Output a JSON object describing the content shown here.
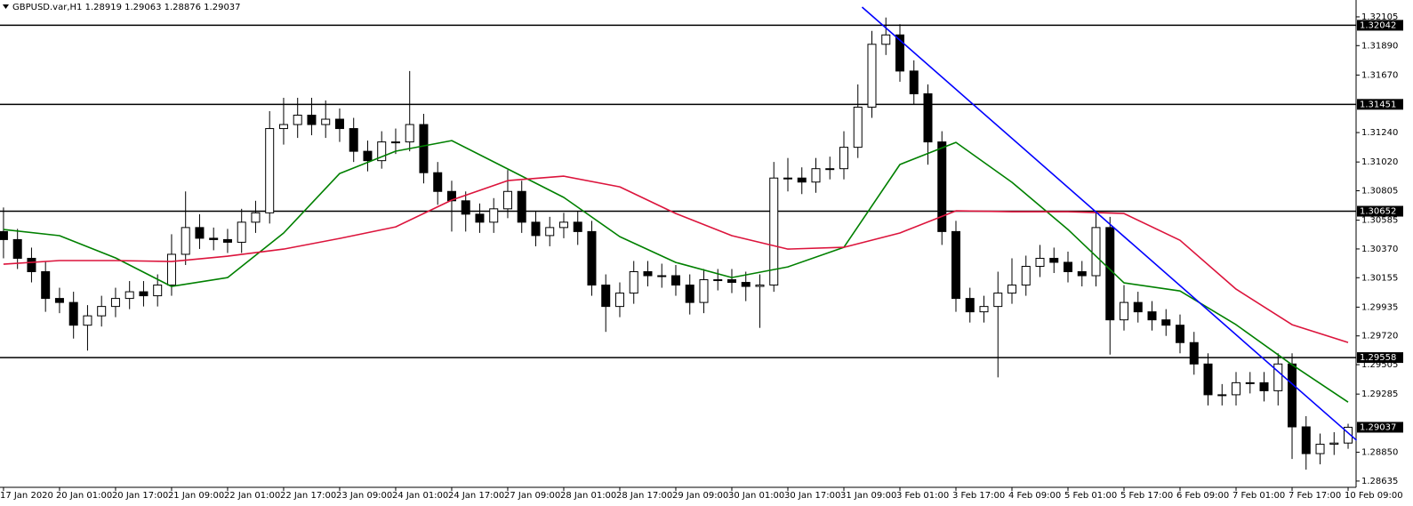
{
  "chart_data": {
    "type": "candlestick",
    "title": "GBPUSD.var,H1  1.28919 1.29063 1.28876 1.29037",
    "categories": [
      "17 Jan 2020",
      null,
      null,
      null,
      "20 Jan 01:00",
      null,
      null,
      null,
      "20 Jan 17:00",
      null,
      null,
      null,
      "21 Jan 09:00",
      null,
      null,
      null,
      "22 Jan 01:00",
      null,
      null,
      null,
      "22 Jan 17:00",
      null,
      null,
      null,
      "23 Jan 09:00",
      null,
      null,
      null,
      "24 Jan 01:00",
      null,
      null,
      null,
      "24 Jan 17:00",
      null,
      null,
      null,
      "27 Jan 09:00",
      null,
      null,
      null,
      "28 Jan 01:00",
      null,
      null,
      null,
      "28 Jan 17:00",
      null,
      null,
      null,
      "29 Jan 09:00",
      null,
      null,
      null,
      "30 Jan 01:00",
      null,
      null,
      null,
      "30 Jan 17:00",
      null,
      null,
      null,
      "31 Jan 09:00",
      null,
      null,
      null,
      "3 Feb 01:00",
      null,
      null,
      null,
      "3 Feb 17:00",
      null,
      null,
      null,
      "4 Feb 09:00",
      null,
      null,
      null,
      "5 Feb 01:00",
      null,
      null,
      null,
      "5 Feb 17:00",
      null,
      null,
      null,
      "6 Feb 09:00",
      null,
      null,
      null,
      "7 Feb 01:00",
      null,
      null,
      null,
      "7 Feb 17:00",
      null,
      null,
      null,
      "10 Feb 09:00"
    ],
    "open": [
      1.305,
      1.3044,
      1.303,
      1.302,
      1.3,
      1.2997,
      1.298,
      1.2987,
      1.2994,
      1.3,
      1.3005,
      1.3002,
      1.301,
      1.3033,
      1.3053,
      1.3045,
      1.3044,
      1.3042,
      1.3057,
      1.3064,
      1.3127,
      1.313,
      1.3137,
      1.313,
      1.3134,
      1.3127,
      1.311,
      1.3103,
      1.3117,
      1.3117,
      1.313,
      1.3094,
      1.308,
      1.3073,
      1.3063,
      1.3057,
      1.3067,
      1.308,
      1.3057,
      1.3047,
      1.3053,
      1.3057,
      1.305,
      1.301,
      1.2994,
      1.3004,
      1.302,
      1.3017,
      1.3017,
      1.301,
      1.2997,
      1.3014,
      1.3014,
      1.3012,
      1.3009,
      1.301,
      1.309,
      1.309,
      1.3087,
      1.3097,
      1.3097,
      1.3113,
      1.3143,
      1.319,
      1.3197,
      1.317,
      1.3153,
      1.3117,
      1.305,
      1.3,
      1.299,
      1.2994,
      1.3004,
      1.301,
      1.3024,
      1.303,
      1.3027,
      1.302,
      1.3017,
      1.3053,
      1.2984,
      1.2997,
      1.299,
      1.2984,
      1.298,
      1.2967,
      1.2951,
      1.2928,
      1.2928,
      1.2937,
      1.2937,
      1.2931,
      1.2951,
      1.2904,
      1.2884,
      1.2891,
      1.28919
    ],
    "high": [
      1.3068,
      1.3052,
      1.3038,
      1.3028,
      1.3008,
      1.3005,
      1.2995,
      1.3002,
      1.3008,
      1.3013,
      1.3013,
      1.3018,
      1.3048,
      1.308,
      1.3063,
      1.3053,
      1.3052,
      1.3067,
      1.3073,
      1.314,
      1.315,
      1.315,
      1.315,
      1.3148,
      1.3142,
      1.3135,
      1.3118,
      1.3125,
      1.3127,
      1.317,
      1.3138,
      1.3102,
      1.3088,
      1.308,
      1.3071,
      1.3075,
      1.3096,
      1.3088,
      1.3065,
      1.3061,
      1.3064,
      1.3065,
      1.3058,
      1.3018,
      1.3012,
      1.3028,
      1.3028,
      1.3026,
      1.3025,
      1.3018,
      1.3022,
      1.3022,
      1.3022,
      1.302,
      1.3018,
      1.3102,
      1.3105,
      1.3098,
      1.3105,
      1.3106,
      1.3125,
      1.316,
      1.32,
      1.321,
      1.3205,
      1.3178,
      1.316,
      1.3125,
      1.3058,
      1.3008,
      1.3002,
      1.302,
      1.303,
      1.3032,
      1.304,
      1.3038,
      1.3035,
      1.3028,
      1.3064,
      1.3061,
      1.301,
      1.3005,
      1.2998,
      1.2992,
      1.2988,
      1.2975,
      1.2959,
      1.2936,
      1.2945,
      1.2945,
      1.2945,
      1.2959,
      1.2959,
      1.2912,
      1.2899,
      1.29,
      1.29063
    ],
    "low": [
      1.303,
      1.3022,
      1.3012,
      1.299,
      1.2989,
      1.297,
      1.2961,
      1.2979,
      1.2986,
      1.2992,
      1.2994,
      1.2994,
      1.3002,
      1.3025,
      1.3037,
      1.3036,
      1.3034,
      1.3034,
      1.3049,
      1.3056,
      1.3115,
      1.312,
      1.3122,
      1.312,
      1.3117,
      1.3102,
      1.3095,
      1.3097,
      1.3108,
      1.311,
      1.3086,
      1.307,
      1.305,
      1.305,
      1.3049,
      1.3049,
      1.306,
      1.3049,
      1.3039,
      1.3039,
      1.3045,
      1.304,
      1.3002,
      1.2975,
      1.2986,
      1.2996,
      1.3009,
      1.3008,
      1.3002,
      1.2988,
      1.2989,
      1.3006,
      1.3004,
      1.2998,
      1.2978,
      1.3005,
      1.308,
      1.3078,
      1.3079,
      1.3089,
      1.3089,
      1.3105,
      1.3135,
      1.3182,
      1.3162,
      1.3145,
      1.31,
      1.304,
      1.299,
      1.2982,
      1.2982,
      1.2941,
      1.2996,
      1.3002,
      1.3016,
      1.3019,
      1.3012,
      1.3009,
      1.3009,
      1.2958,
      1.2976,
      1.2982,
      1.2976,
      1.2972,
      1.2959,
      1.2943,
      1.292,
      1.292,
      1.292,
      1.2929,
      1.2923,
      1.292,
      1.288,
      1.2872,
      1.2876,
      1.2883,
      1.28876
    ],
    "close": [
      1.3044,
      1.303,
      1.302,
      1.3,
      1.2997,
      1.298,
      1.2987,
      1.2994,
      1.3,
      1.3005,
      1.3002,
      1.301,
      1.3033,
      1.3053,
      1.3045,
      1.3044,
      1.3042,
      1.3057,
      1.3064,
      1.3127,
      1.313,
      1.3137,
      1.313,
      1.3134,
      1.3127,
      1.311,
      1.3103,
      1.3117,
      1.3117,
      1.313,
      1.3094,
      1.308,
      1.3073,
      1.3063,
      1.3057,
      1.3067,
      1.308,
      1.3057,
      1.3047,
      1.3053,
      1.3057,
      1.305,
      1.301,
      1.2994,
      1.3004,
      1.302,
      1.3017,
      1.3017,
      1.301,
      1.2997,
      1.3014,
      1.3014,
      1.3012,
      1.3009,
      1.301,
      1.309,
      1.309,
      1.3087,
      1.3097,
      1.3097,
      1.3113,
      1.3143,
      1.319,
      1.3197,
      1.317,
      1.3153,
      1.3117,
      1.305,
      1.3,
      1.299,
      1.2994,
      1.3004,
      1.301,
      1.3024,
      1.303,
      1.3027,
      1.302,
      1.3017,
      1.3053,
      1.2984,
      1.2997,
      1.299,
      1.2984,
      1.298,
      1.2967,
      1.2951,
      1.2928,
      1.2928,
      1.2937,
      1.2937,
      1.2931,
      1.2951,
      1.2904,
      1.2884,
      1.2891,
      1.28919,
      1.29037
    ],
    "up_color": "#ffffff",
    "down_color": "#000000",
    "moving_averages": [
      {
        "color": "#008000",
        "x": [
          0,
          4,
          8,
          12,
          16,
          20,
          24,
          28,
          32,
          36,
          40,
          44,
          48,
          52,
          56,
          60,
          64,
          68,
          72,
          76,
          80,
          84,
          88,
          92,
          96
        ],
        "values": [
          1.30515,
          1.30469,
          1.30303,
          1.3009,
          1.30156,
          1.30489,
          1.30934,
          1.31101,
          1.3118,
          1.30968,
          1.30755,
          1.30462,
          1.30269,
          1.30156,
          1.30236,
          1.30382,
          1.31001,
          1.31167,
          1.30868,
          1.30515,
          1.30116,
          1.30056,
          1.29804,
          1.29504,
          1.29225
        ]
      },
      {
        "color": "#dc143c",
        "x": [
          0,
          4,
          8,
          12,
          16,
          20,
          24,
          28,
          32,
          36,
          40,
          44,
          48,
          52,
          56,
          60,
          64,
          68,
          72,
          76,
          80,
          84,
          88,
          92,
          96
        ],
        "values": [
          1.30256,
          1.30283,
          1.30283,
          1.30276,
          1.30316,
          1.30369,
          1.30449,
          1.30535,
          1.30735,
          1.30881,
          1.30914,
          1.30834,
          1.30635,
          1.30469,
          1.30369,
          1.30382,
          1.30489,
          1.30655,
          1.30648,
          1.30648,
          1.30635,
          1.30435,
          1.3007,
          1.29804,
          1.29671
        ]
      }
    ],
    "trendline": {
      "color": "#0000ff",
      "x": [
        61.3,
        96.6
      ],
      "values": [
        1.32178,
        1.2894
      ]
    },
    "levels": [
      1.32042,
      1.31451,
      1.30652,
      1.29558
    ],
    "xlim": [
      -0.25,
      96.57
    ],
    "ylim": [
      1.28588,
      1.32231
    ],
    "yticks": [
      1.32105,
      {
        "value": 1.3189,
        "label": "1.31890"
      },
      {
        "value": 1.3167,
        "label": "1.31670"
      },
      {
        "value": 1.3124,
        "label": "1.31240"
      },
      {
        "value": 1.3102,
        "label": "1.31020"
      },
      1.30805,
      1.30585,
      {
        "value": 1.3037,
        "label": "1.30370"
      },
      1.30155,
      1.29935,
      {
        "value": 1.2972,
        "label": "1.29720"
      },
      1.29505,
      1.29285,
      {
        "value": 1.2885,
        "label": "1.28850"
      },
      1.28635
    ]
  }
}
